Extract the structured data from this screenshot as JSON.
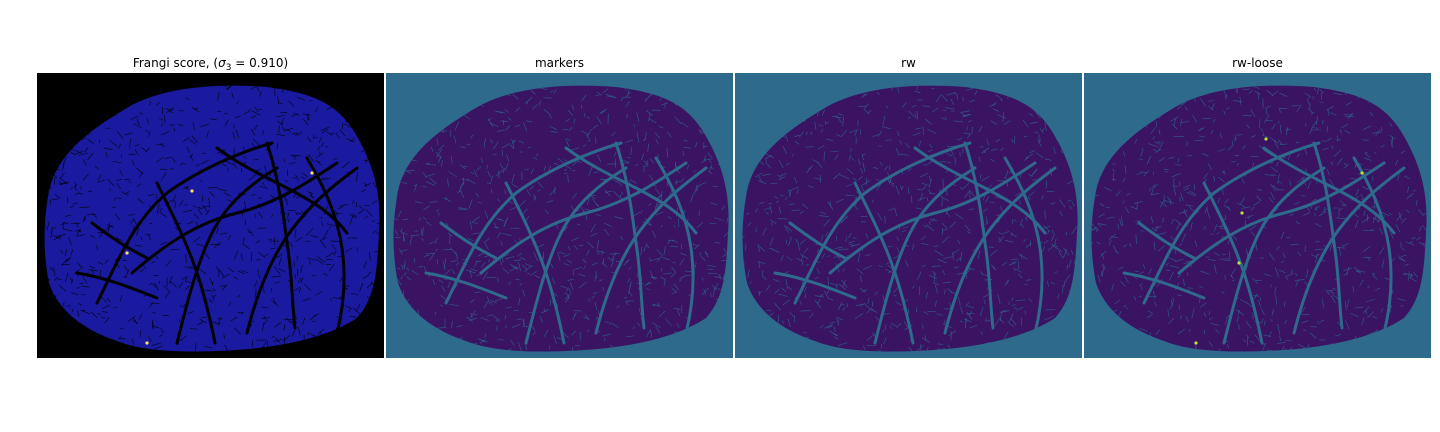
{
  "panels": [
    {
      "title_prefix": "Frangi score, (",
      "title_symbol": "σ",
      "title_sub": "3",
      "title_suffix": " = 0.910)",
      "background": "#000000",
      "foreground": "#1a1aa0",
      "vessel": "#000000",
      "speck": "#ffe060"
    },
    {
      "title": "markers",
      "background": "#2e6a8c",
      "foreground": "#3b1363",
      "vessel": "#2e6a8c"
    },
    {
      "title": "rw",
      "background": "#2e6a8c",
      "foreground": "#3b1363",
      "vessel": "#2e6a8c"
    },
    {
      "title": "rw-loose",
      "background": "#2e6a8c",
      "foreground": "#3b1363",
      "vessel": "#2e6a8c",
      "speck": "#b8e33a"
    }
  ]
}
